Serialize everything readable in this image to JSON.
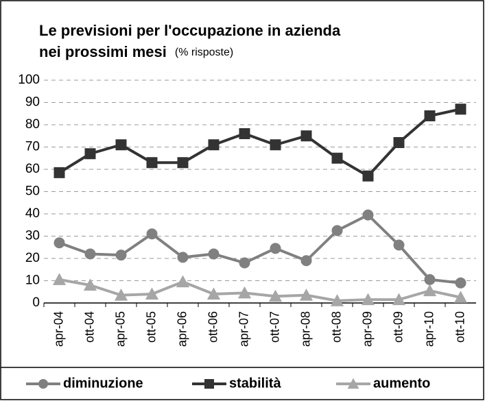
{
  "chart_data": {
    "type": "line",
    "title": [
      "Le previsioni per l'occupazione in azienda",
      "nei prossimi mesi"
    ],
    "subtitle": "(% risposte)",
    "categories": [
      "apr-04",
      "ott-04",
      "apr-05",
      "ott-05",
      "apr-06",
      "ott-06",
      "apr-07",
      "ott-07",
      "apr-08",
      "ott-08",
      "apr-09",
      "ott-09",
      "apr-10",
      "ott-10"
    ],
    "series": [
      {
        "name": "diminuzione",
        "color": "#808080",
        "marker": "circle",
        "values": [
          27,
          22,
          21.5,
          31,
          20.5,
          22,
          18,
          24.5,
          19,
          32.5,
          39.5,
          26,
          10.5,
          9
        ]
      },
      {
        "name": "stabilità",
        "color": "#333333",
        "marker": "square",
        "values": [
          58.5,
          67,
          71,
          63,
          63,
          71,
          76,
          71,
          75,
          65,
          57,
          72,
          84,
          87
        ]
      },
      {
        "name": "aumento",
        "color": "#a6a6a6",
        "marker": "triangle",
        "values": [
          10.5,
          8,
          3.5,
          4,
          9.5,
          4,
          4.5,
          3,
          3.5,
          1,
          1.5,
          1.5,
          5.5,
          2.5
        ]
      }
    ],
    "ylim": [
      0,
      100
    ],
    "yticks": [
      0,
      10,
      20,
      30,
      40,
      50,
      60,
      70,
      80,
      90,
      100
    ],
    "grid": true,
    "legend": "bottom"
  }
}
